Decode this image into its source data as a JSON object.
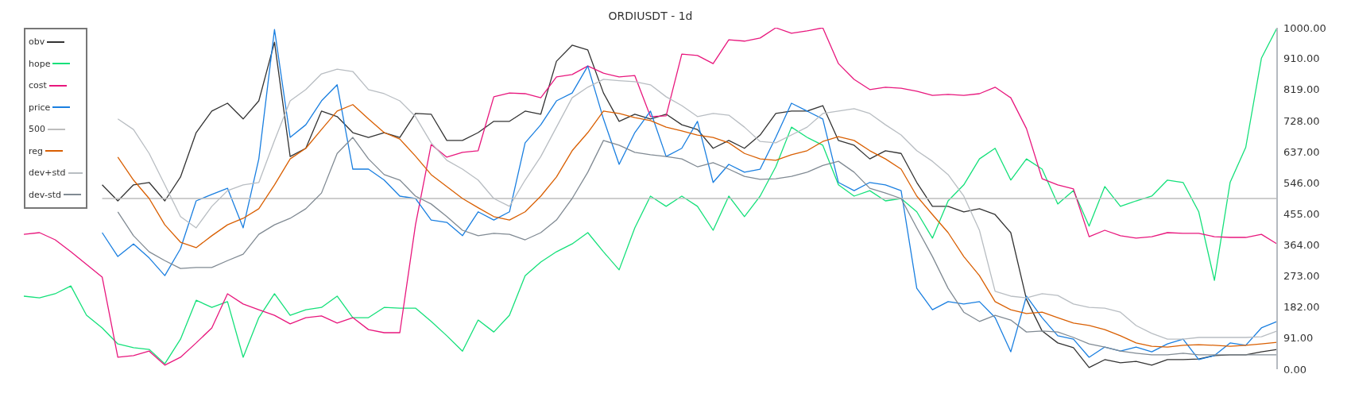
{
  "chart_data": {
    "type": "line",
    "title": "ORDIUSDT - 1d",
    "legend": "top left",
    "tick_labels": "y",
    "categories": [
      null,
      null,
      null,
      null,
      null,
      null,
      null,
      null,
      null,
      null,
      null,
      null,
      null,
      null,
      null,
      null,
      null,
      null,
      null,
      null,
      null,
      null,
      null,
      null,
      null,
      null,
      null,
      null,
      null,
      null,
      null,
      null,
      null,
      null,
      null,
      null,
      null,
      null,
      null,
      null,
      null,
      null,
      null,
      null,
      null,
      null,
      null,
      null,
      null,
      null,
      null,
      null,
      null,
      null,
      null,
      null,
      null,
      null,
      null,
      null,
      null,
      null,
      null,
      null,
      null,
      null,
      null,
      null,
      null,
      null,
      null,
      null,
      null,
      null,
      null,
      null,
      null,
      null,
      null,
      null,
      null
    ],
    "ylim": [
      0,
      1000
    ],
    "yticks": [
      {
        "value": 0,
        "label": "0.00"
      },
      {
        "value": 91,
        "label": "91.00"
      },
      {
        "value": 182,
        "label": "182.00"
      },
      {
        "value": 273,
        "label": "273.00"
      },
      {
        "value": 364,
        "label": "364.00"
      },
      {
        "value": 455,
        "label": "455.00"
      },
      {
        "value": 546,
        "label": "546.00"
      },
      {
        "value": 637,
        "label": "637.00"
      },
      {
        "value": 728,
        "label": "728.00"
      },
      {
        "value": 819,
        "label": "819.00"
      },
      {
        "value": 910,
        "label": "910.00"
      },
      {
        "value": 1000,
        "label": "1000.00"
      }
    ],
    "series": [
      {
        "name": "obv",
        "color": "#333333",
        "values": [
          null,
          null,
          null,
          null,
          null,
          540,
          493,
          540,
          547,
          493,
          563,
          693,
          756,
          779,
          733,
          786,
          958,
          623,
          647,
          756,
          740,
          693,
          679,
          693,
          679,
          749,
          747,
          670,
          670,
          693,
          726,
          726,
          756,
          747,
          902,
          949,
          935,
          809,
          726,
          747,
          733,
          747,
          716,
          702,
          647,
          670,
          647,
          686,
          749,
          756,
          756,
          772,
          670,
          656,
          616,
          640,
          632,
          547,
          477,
          477,
          461,
          470,
          453,
          400,
          205,
          112,
          77,
          63,
          5,
          28,
          19,
          23,
          12,
          28,
          28,
          30,
          40,
          42,
          42,
          51,
          58
        ]
      },
      {
        "name": "hope",
        "color": "#14e07a",
        "values": [
          214,
          209,
          221,
          244,
          158,
          121,
          74,
          63,
          58,
          16,
          88,
          202,
          181,
          198,
          35,
          151,
          221,
          158,
          174,
          181,
          214,
          151,
          151,
          181,
          179,
          179,
          140,
          98,
          53,
          144,
          109,
          158,
          274,
          314,
          344,
          367,
          400,
          344,
          291,
          414,
          507,
          477,
          507,
          477,
          407,
          507,
          447,
          507,
          593,
          709,
          679,
          656,
          540,
          507,
          523,
          493,
          500,
          461,
          384,
          493,
          540,
          616,
          647,
          554,
          616,
          586,
          484,
          523,
          419,
          535,
          477,
          493,
          507,
          554,
          547,
          461,
          260,
          547,
          650,
          911,
          1000
        ]
      },
      {
        "name": "cost",
        "color": "#e8177d",
        "values": [
          395,
          400,
          379,
          344,
          307,
          270,
          35,
          40,
          53,
          12,
          35,
          77,
          121,
          221,
          191,
          174,
          158,
          133,
          151,
          156,
          135,
          151,
          116,
          107,
          107,
          423,
          658,
          621,
          635,
          640,
          798,
          809,
          807,
          795,
          856,
          863,
          888,
          867,
          856,
          860,
          740,
          742,
          923,
          919,
          895,
          965,
          961,
          970,
          1000,
          984,
          991,
          1000,
          895,
          849,
          819,
          826,
          823,
          814,
          802,
          805,
          802,
          807,
          826,
          795,
          705,
          558,
          540,
          528,
          388,
          407,
          391,
          384,
          388,
          400,
          398,
          398,
          388,
          386,
          386,
          395,
          367
        ]
      },
      {
        "name": "price",
        "color": "#1a7fe0",
        "values": [
          null,
          null,
          null,
          null,
          null,
          400,
          330,
          367,
          326,
          274,
          353,
          493,
          512,
          530,
          414,
          616,
          995,
          679,
          716,
          786,
          833,
          586,
          586,
          554,
          507,
          500,
          437,
          430,
          391,
          461,
          437,
          461,
          663,
          716,
          786,
          809,
          888,
          733,
          600,
          693,
          756,
          623,
          647,
          726,
          547,
          600,
          577,
          586,
          679,
          779,
          756,
          733,
          547,
          523,
          547,
          540,
          523,
          237,
          174,
          198,
          191,
          198,
          151,
          51,
          214,
          151,
          98,
          88,
          35,
          65,
          53,
          65,
          51,
          74,
          88,
          28,
          40,
          77,
          70,
          121,
          140
        ]
      },
      {
        "name": "500",
        "color": "#bdbdbd",
        "values": [
          null,
          null,
          null,
          null,
          null,
          500,
          500,
          500,
          500,
          500,
          500,
          500,
          500,
          500,
          500,
          500,
          500,
          500,
          500,
          500,
          500,
          500,
          500,
          500,
          500,
          500,
          500,
          500,
          500,
          500,
          500,
          500,
          500,
          500,
          500,
          500,
          500,
          500,
          500,
          500,
          500,
          500,
          500,
          500,
          500,
          500,
          500,
          500,
          500,
          500,
          500,
          500,
          500,
          500,
          500,
          500,
          500,
          500,
          500,
          500,
          500,
          500,
          500,
          500,
          500,
          500,
          500,
          500,
          500,
          500,
          500,
          500,
          500,
          500,
          500,
          500,
          500,
          500,
          500,
          500,
          500
        ]
      },
      {
        "name": "reg",
        "color": "#d95f02",
        "values": [
          null,
          null,
          null,
          null,
          null,
          null,
          621,
          554,
          500,
          423,
          372,
          356,
          391,
          423,
          442,
          470,
          540,
          616,
          647,
          702,
          756,
          775,
          733,
          693,
          674,
          624,
          570,
          535,
          500,
          473,
          447,
          437,
          461,
          507,
          563,
          640,
          693,
          756,
          749,
          737,
          728,
          709,
          698,
          686,
          679,
          663,
          632,
          616,
          612,
          628,
          640,
          667,
          681,
          670,
          640,
          616,
          586,
          507,
          453,
          400,
          330,
          274,
          198,
          174,
          163,
          167,
          151,
          135,
          128,
          116,
          98,
          77,
          67,
          65,
          70,
          72,
          70,
          67,
          70,
          74,
          79
        ]
      },
      {
        "name": "dev+std",
        "color": "#b8bdc2",
        "values": [
          null,
          null,
          null,
          null,
          null,
          null,
          733,
          702,
          632,
          540,
          447,
          414,
          477,
          523,
          540,
          547,
          670,
          786,
          819,
          865,
          879,
          872,
          819,
          807,
          786,
          740,
          663,
          612,
          586,
          554,
          500,
          477,
          554,
          623,
          709,
          795,
          826,
          849,
          845,
          842,
          833,
          798,
          772,
          740,
          749,
          744,
          709,
          667,
          663,
          686,
          709,
          749,
          756,
          763,
          749,
          716,
          686,
          640,
          609,
          570,
          507,
          407,
          228,
          214,
          209,
          221,
          216,
          191,
          181,
          179,
          167,
          128,
          105,
          88,
          88,
          93,
          93,
          93,
          93,
          95,
          112
        ]
      },
      {
        "name": "dev-std",
        "color": "#808a93",
        "values": [
          null,
          null,
          null,
          null,
          null,
          null,
          461,
          391,
          344,
          318,
          295,
          298,
          298,
          318,
          337,
          395,
          423,
          442,
          470,
          516,
          632,
          679,
          616,
          570,
          554,
          507,
          484,
          447,
          407,
          391,
          398,
          395,
          379,
          400,
          437,
          500,
          577,
          670,
          656,
          635,
          628,
          623,
          616,
          593,
          605,
          586,
          565,
          556,
          558,
          565,
          577,
          597,
          609,
          577,
          530,
          516,
          500,
          414,
          330,
          237,
          167,
          140,
          158,
          144,
          109,
          112,
          109,
          93,
          74,
          65,
          53,
          47,
          42,
          42,
          47,
          42,
          42,
          42,
          42,
          42,
          42
        ]
      }
    ]
  }
}
